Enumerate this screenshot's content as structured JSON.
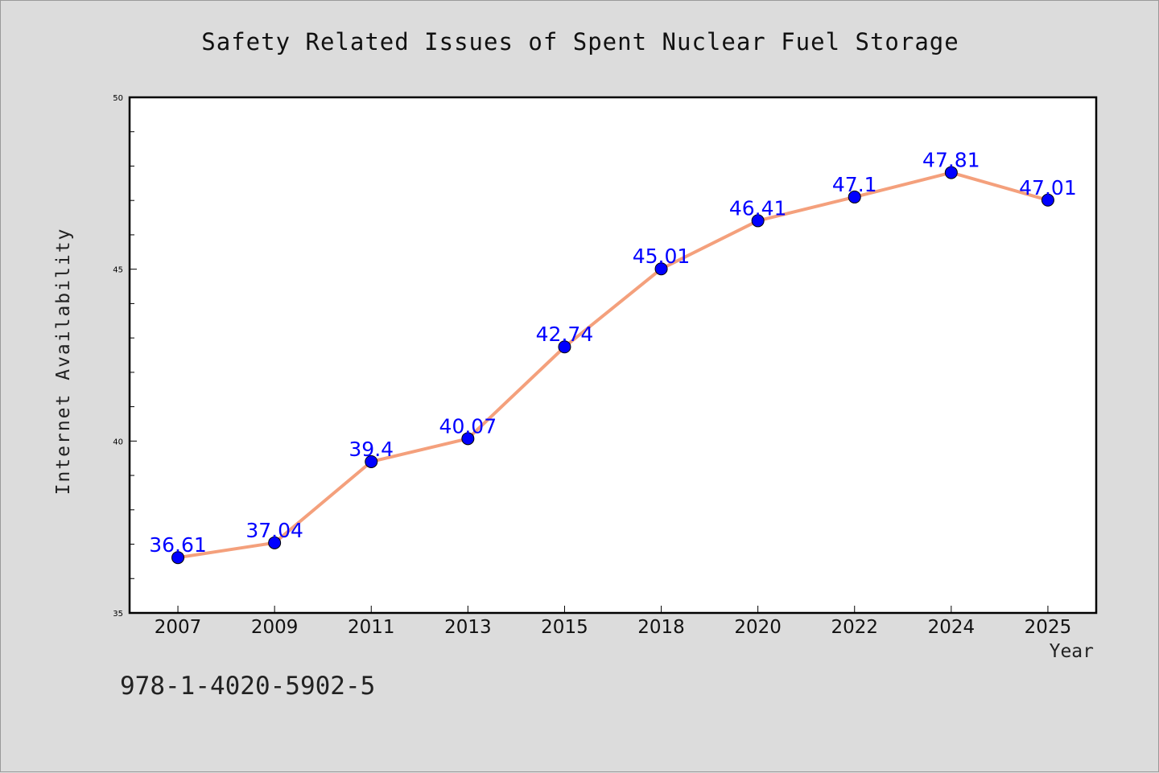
{
  "chart_data": {
    "type": "line",
    "title": "Safety Related Issues of Spent Nuclear Fuel Storage",
    "xlabel": "Year",
    "ylabel": "Internet Availability",
    "categories": [
      "2007",
      "2009",
      "2011",
      "2013",
      "2015",
      "2018",
      "2020",
      "2022",
      "2024",
      "2025"
    ],
    "series": [
      {
        "values": [
          36.61,
          37.04,
          39.4,
          40.07,
          42.74,
          45.01,
          46.41,
          47.1,
          47.81,
          47.01
        ],
        "data_labels": [
          "36.61",
          "37.04",
          "39.4",
          "40.07",
          "42.74",
          "45.01",
          "46.41",
          "47.1",
          "47.81",
          "47.01"
        ],
        "line_color": "#f4a07c",
        "marker_color": "#0000ff",
        "label_color": "#0000ff"
      }
    ],
    "ylim": [
      35,
      50
    ],
    "y_ticks": [
      "35",
      "40",
      "45",
      "50"
    ],
    "y_minor_step": 1,
    "grid": false,
    "background_color": "#ffffff"
  },
  "footer": {
    "code": "978-1-4020-5902-5"
  }
}
